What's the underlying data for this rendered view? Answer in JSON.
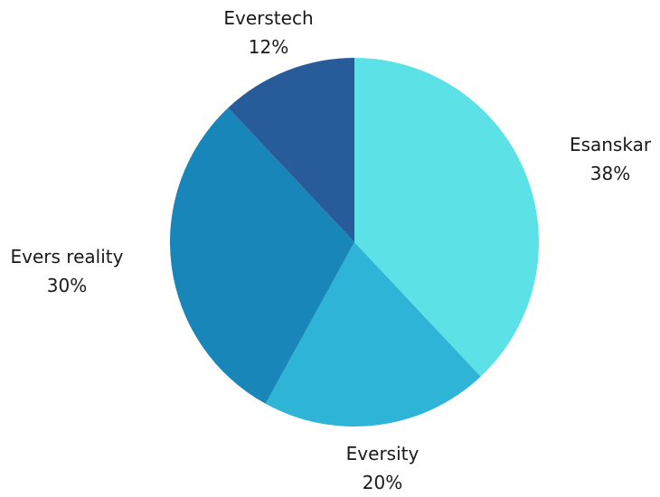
{
  "chart_data": {
    "type": "pie",
    "start_angle_deg": 0,
    "direction": "clockwise",
    "slices": [
      {
        "label": "Esanskar",
        "value": 38,
        "value_label": "38%",
        "color": "#5ce1e6"
      },
      {
        "label": "Eversity",
        "value": 20,
        "value_label": "20%",
        "color": "#2eb4d6"
      },
      {
        "label": "Evers reality",
        "value": 30,
        "value_label": "30%",
        "color": "#1886b8"
      },
      {
        "label": "Everstech",
        "value": 12,
        "value_label": "12%",
        "color": "#275b99"
      }
    ],
    "legend": "none"
  }
}
